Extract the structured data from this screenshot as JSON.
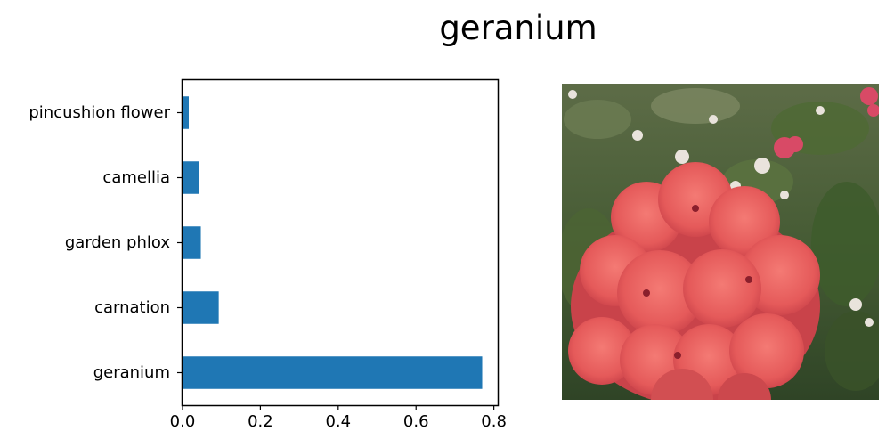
{
  "figure": {
    "title": "geranium"
  },
  "chart_data": {
    "type": "bar",
    "orientation": "horizontal",
    "categories": [
      "geranium",
      "carnation",
      "garden phlox",
      "camellia",
      "pincushion flower"
    ],
    "values": [
      0.77,
      0.093,
      0.047,
      0.042,
      0.016
    ],
    "xlim": [
      0,
      0.81
    ],
    "xticks": [
      "0.0",
      "0.2",
      "0.4",
      "0.6",
      "0.8"
    ],
    "xtick_values": [
      0,
      0.2,
      0.4,
      0.6,
      0.8
    ],
    "xlabel": "",
    "ylabel": "",
    "grid": false,
    "bar_color": "#1f77b4"
  },
  "image": {
    "subject": "pink geranium flower cluster",
    "colors": {
      "foliage": "#3f5a2f",
      "petal": "#e95c5c",
      "petal_highlight": "#f08080",
      "petal_shadow": "#c63e45"
    }
  }
}
